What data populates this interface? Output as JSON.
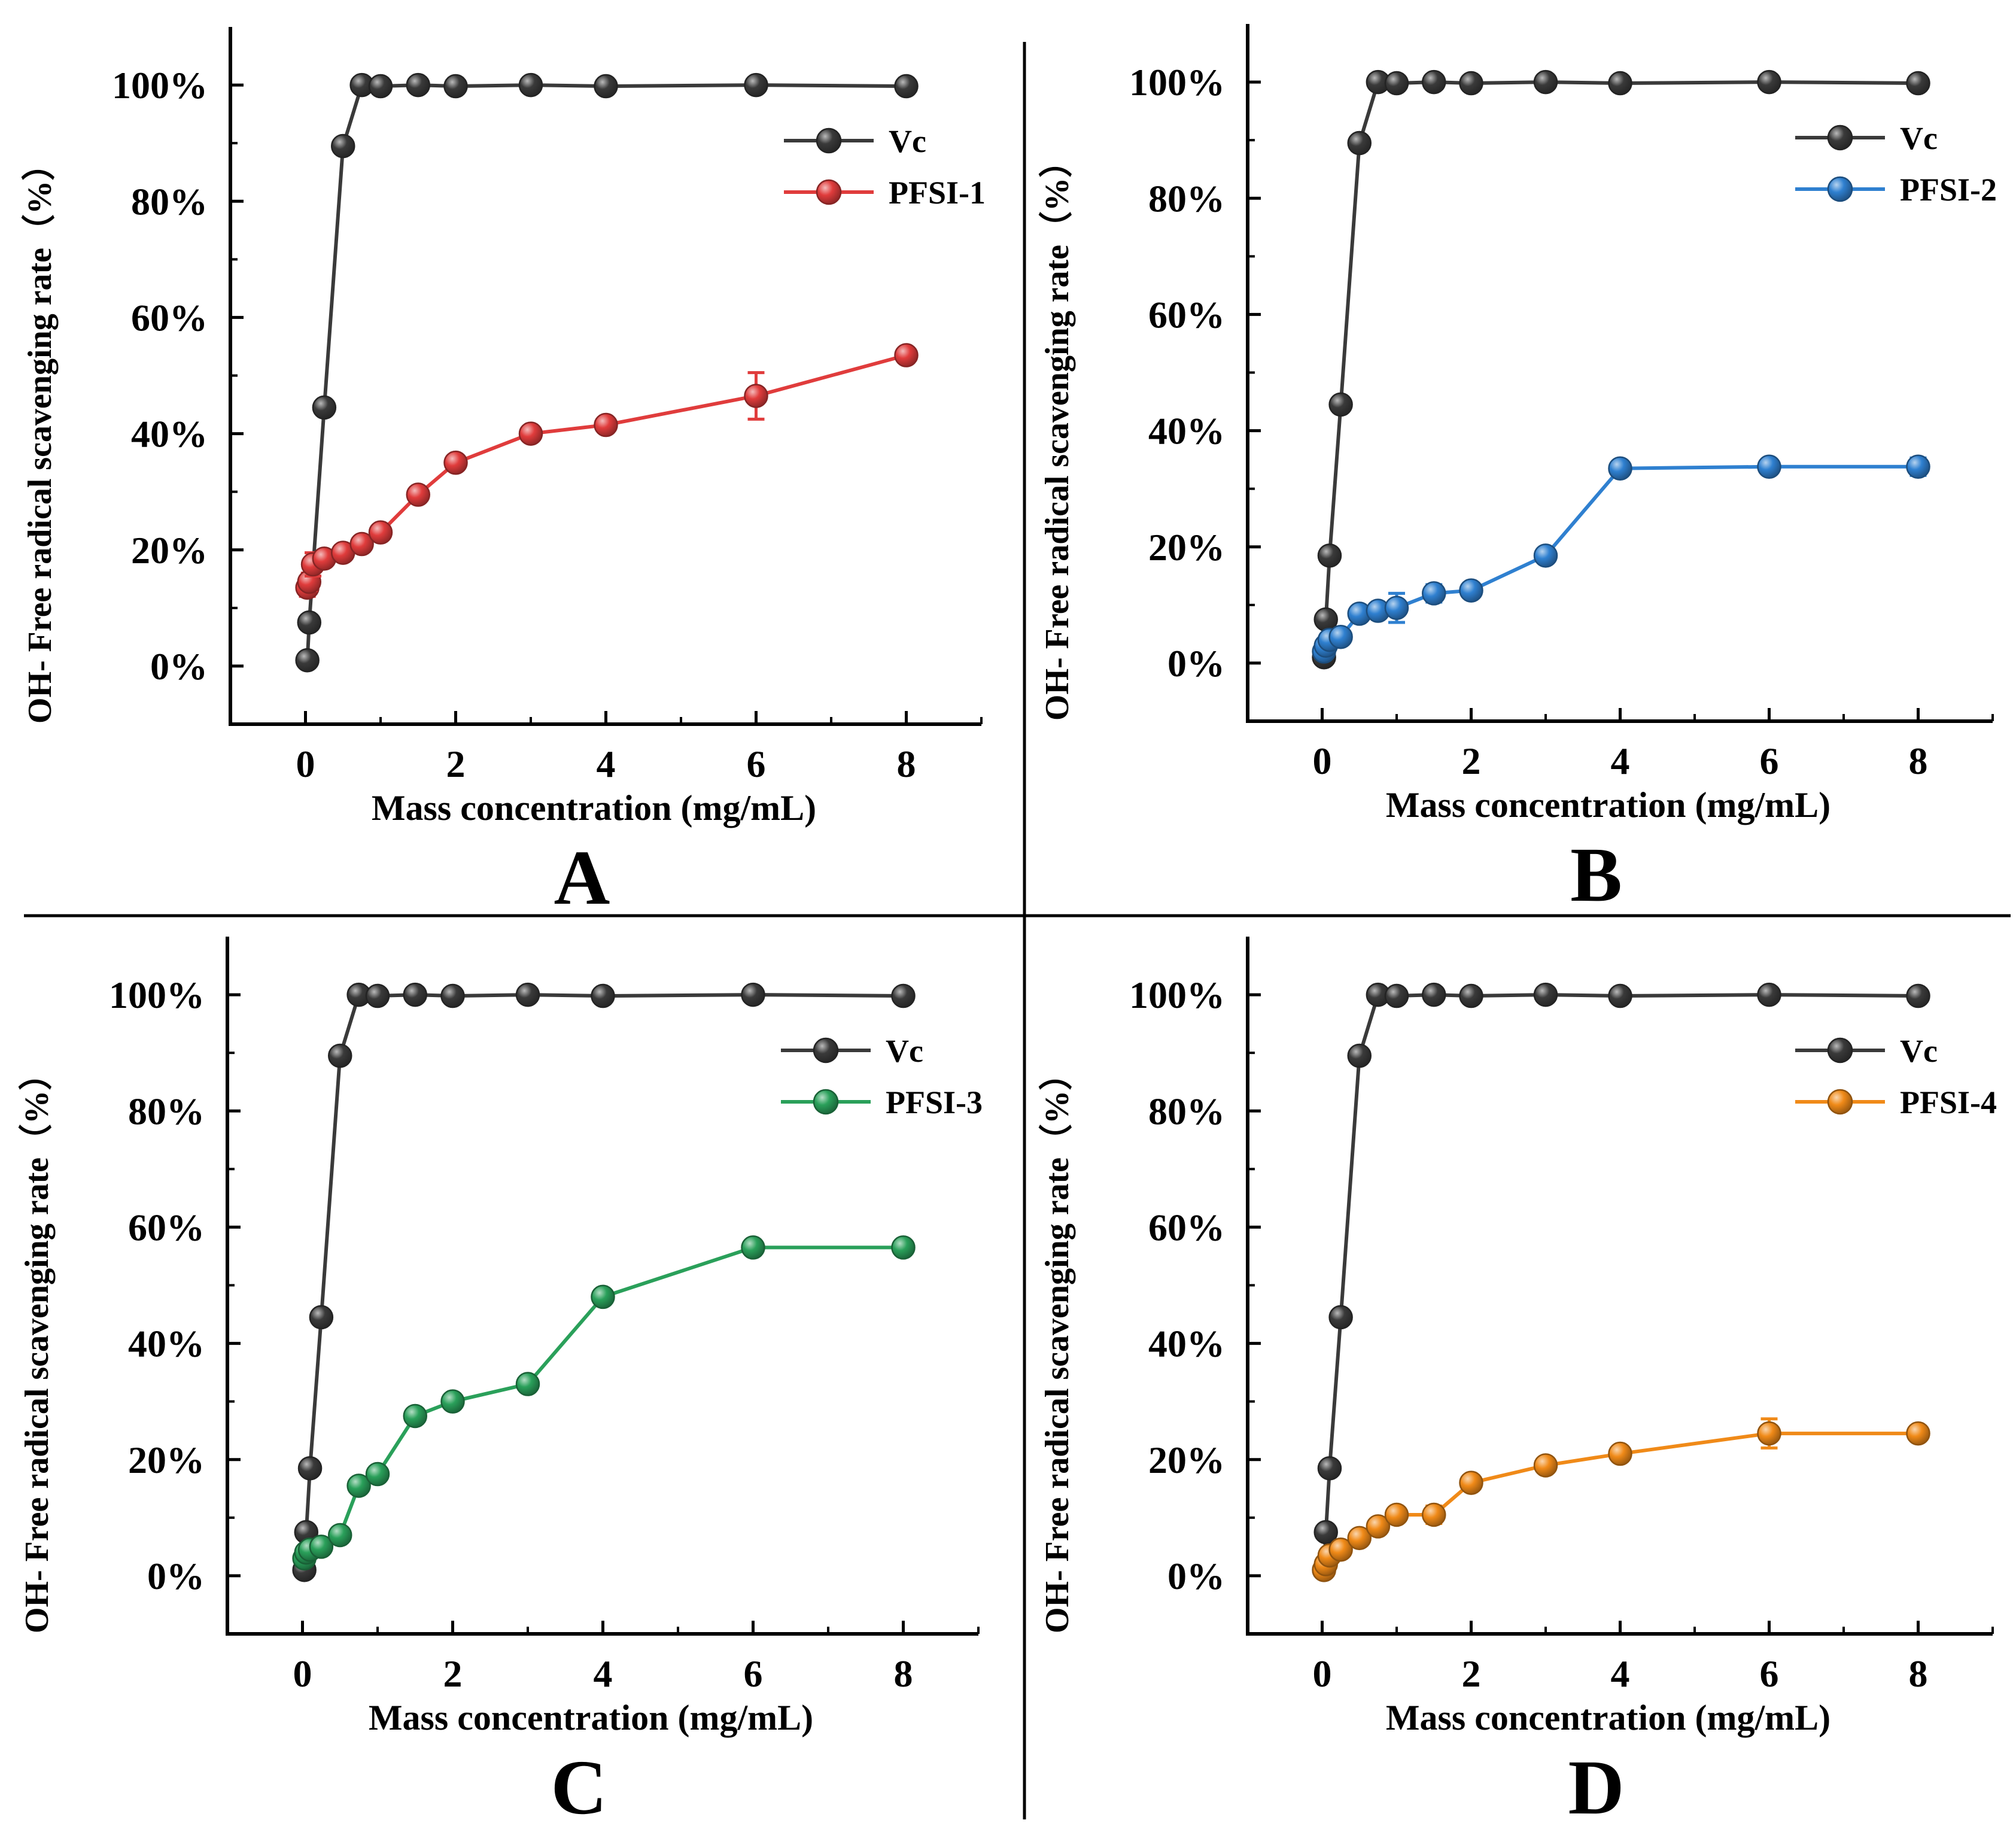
{
  "figure": {
    "colors": {
      "Vc": "#3a3a3a",
      "PFSI-1": "#e03c3c",
      "PFSI-2": "#2f80d0",
      "PFSI-3": "#2aa05a",
      "PFSI-4": "#f08a18"
    }
  },
  "chart_data": [
    {
      "type": "line",
      "panel": "A",
      "xlabel": "Mass concentration (mg/mL)",
      "ylabel": "OH-  Free radical scavenging rate（%）",
      "xlim": [
        -1,
        9
      ],
      "ylim": [
        -10,
        110
      ],
      "xticks": [
        "0",
        "2",
        "4",
        "6",
        "8"
      ],
      "yticks": [
        "0%",
        "20%",
        "40%",
        "60%",
        "80%",
        "100%"
      ],
      "legend_position": "top-right",
      "series": [
        {
          "name": "Vc",
          "color": "#3a3a3a",
          "x": [
            0.025,
            0.05,
            0.25,
            0.5,
            0.75,
            1,
            1.5,
            2,
            3,
            4,
            6,
            8
          ],
          "y": [
            1,
            7.5,
            44.5,
            89.5,
            100,
            99.8,
            100,
            99.8,
            100,
            99.8,
            100,
            99.8
          ],
          "err": [
            0,
            0,
            0,
            0,
            0,
            0,
            0,
            0,
            0,
            0,
            0,
            0
          ]
        },
        {
          "name": "PFSI-1",
          "color": "#e03c3c",
          "x": [
            0.025,
            0.05,
            0.1,
            0.25,
            0.5,
            0.75,
            1,
            1.5,
            2,
            3,
            4,
            6,
            8
          ],
          "y": [
            13.5,
            14.5,
            17.5,
            18.5,
            19.5,
            21,
            23,
            29.5,
            35,
            40,
            41.5,
            46.5,
            53.5
          ],
          "err": [
            1.5,
            1.5,
            2,
            1,
            1,
            1,
            1,
            1,
            1,
            1,
            1,
            4,
            1
          ]
        }
      ]
    },
    {
      "type": "line",
      "panel": "B",
      "xlabel": "Mass concentration (mg/mL)",
      "ylabel": "OH-  Free radical scavenging rate（%）",
      "xlim": [
        -1,
        9
      ],
      "ylim": [
        -10,
        110
      ],
      "xticks": [
        "0",
        "2",
        "4",
        "6",
        "8"
      ],
      "yticks": [
        "0%",
        "20%",
        "40%",
        "60%",
        "80%",
        "100%"
      ],
      "legend_position": "top-right",
      "series": [
        {
          "name": "Vc",
          "color": "#3a3a3a",
          "x": [
            0.025,
            0.05,
            0.1,
            0.25,
            0.5,
            0.75,
            1,
            1.5,
            2,
            3,
            4,
            6,
            8
          ],
          "y": [
            1,
            7.5,
            18.5,
            44.5,
            89.5,
            100,
            99.8,
            100,
            99.8,
            100,
            99.8,
            100,
            99.8
          ],
          "err": [
            0,
            0,
            0,
            0,
            0,
            0,
            0,
            0,
            0,
            0,
            0,
            0,
            0
          ]
        },
        {
          "name": "PFSI-2",
          "color": "#2f80d0",
          "x": [
            0.025,
            0.05,
            0.1,
            0.25,
            0.5,
            0.75,
            1,
            1.5,
            2,
            3,
            4,
            6,
            8
          ],
          "y": [
            2,
            3,
            4,
            4.5,
            8.5,
            9,
            9.5,
            12,
            12.5,
            18.5,
            33.5,
            33.8,
            33.8
          ],
          "err": [
            0.5,
            0.5,
            1,
            1,
            1,
            1,
            2.5,
            1.5,
            1,
            1,
            1,
            1,
            1.5
          ]
        }
      ]
    },
    {
      "type": "line",
      "panel": "C",
      "xlabel": "Mass concentration (mg/mL)",
      "ylabel": "OH-  Free radical scavenging rate（%）",
      "xlim": [
        -1,
        9
      ],
      "ylim": [
        -10,
        110
      ],
      "xticks": [
        "0",
        "2",
        "4",
        "6",
        "8"
      ],
      "yticks": [
        "0%",
        "20%",
        "40%",
        "60%",
        "80%",
        "100%"
      ],
      "legend_position": "top-right",
      "series": [
        {
          "name": "Vc",
          "color": "#3a3a3a",
          "x": [
            0.025,
            0.05,
            0.1,
            0.25,
            0.5,
            0.75,
            1,
            1.5,
            2,
            3,
            4,
            6,
            8
          ],
          "y": [
            1,
            7.5,
            18.5,
            44.5,
            89.5,
            100,
            99.8,
            100,
            99.8,
            100,
            99.8,
            100,
            99.8
          ],
          "err": [
            0,
            0,
            0,
            0,
            0,
            0,
            0,
            0,
            0,
            0,
            0,
            0,
            0
          ]
        },
        {
          "name": "PFSI-3",
          "color": "#2aa05a",
          "x": [
            0.025,
            0.05,
            0.1,
            0.25,
            0.5,
            0.75,
            1,
            1.5,
            2,
            3,
            4,
            6,
            8
          ],
          "y": [
            3,
            4,
            4.5,
            5,
            7,
            15.5,
            17.5,
            27.5,
            30,
            33,
            48,
            56.5,
            56.5
          ],
          "err": [
            0.5,
            0.5,
            0.5,
            0.5,
            1,
            1,
            1,
            1,
            1,
            1,
            1,
            1,
            1
          ]
        }
      ]
    },
    {
      "type": "line",
      "panel": "D",
      "xlabel": "Mass concentration (mg/mL)",
      "ylabel": "OH-  Free radical scavenging rate（%）",
      "xlim": [
        -1,
        9
      ],
      "ylim": [
        -10,
        110
      ],
      "xticks": [
        "0",
        "2",
        "4",
        "6",
        "8"
      ],
      "yticks": [
        "0%",
        "20%",
        "40%",
        "60%",
        "80%",
        "100%"
      ],
      "legend_position": "top-right",
      "series": [
        {
          "name": "Vc",
          "color": "#3a3a3a",
          "x": [
            0.025,
            0.05,
            0.1,
            0.25,
            0.5,
            0.75,
            1,
            1.5,
            2,
            3,
            4,
            6,
            8
          ],
          "y": [
            1,
            7.5,
            18.5,
            44.5,
            89.5,
            100,
            99.8,
            100,
            99.8,
            100,
            99.8,
            100,
            99.8
          ],
          "err": [
            0,
            0,
            0,
            0,
            0,
            0,
            0,
            0,
            0,
            0,
            0,
            0,
            0
          ]
        },
        {
          "name": "PFSI-4",
          "color": "#f08a18",
          "x": [
            0.025,
            0.05,
            0.1,
            0.25,
            0.5,
            0.75,
            1,
            1.5,
            2,
            3,
            4,
            6,
            8
          ],
          "y": [
            1,
            2,
            3.5,
            4.5,
            6.5,
            8.5,
            10.5,
            10.5,
            16,
            19,
            21,
            24.5,
            24.5
          ],
          "err": [
            0.5,
            0.5,
            1,
            1,
            1,
            1,
            1,
            1.5,
            1,
            1,
            1,
            2.5,
            1
          ]
        }
      ]
    }
  ]
}
